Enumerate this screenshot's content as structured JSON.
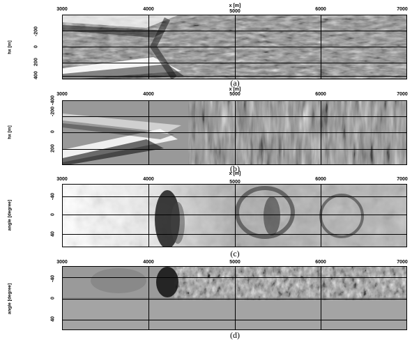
{
  "panels": [
    {
      "caption": "(a)",
      "x_label": "x [m]",
      "y_label": "hx [m]",
      "x_ticks": [
        "3000",
        "4000",
        "5000",
        "6000",
        "7000"
      ],
      "y_ticks": [
        "-200",
        "0",
        "200",
        "400"
      ]
    },
    {
      "caption": "(b)",
      "x_label": "x [m]",
      "y_label": "hx [m]",
      "x_ticks": [
        "3000",
        "4000",
        "5000",
        "6000",
        "7000"
      ],
      "y_ticks": [
        "-400",
        "-200",
        "0",
        "200"
      ]
    },
    {
      "caption": "(c)",
      "x_label": "x [m]",
      "y_label": "angle [degree]",
      "x_ticks": [
        "3000",
        "4000",
        "5000",
        "6000",
        "7000"
      ],
      "y_ticks": [
        "-40",
        "0",
        "40"
      ]
    },
    {
      "caption": "(d)",
      "x_label": "",
      "y_label": "angle [degree]",
      "x_ticks": [
        "3000",
        "4000",
        "5000",
        "6000",
        "7000"
      ],
      "y_ticks": [
        "-40",
        "0",
        "40"
      ]
    }
  ]
}
